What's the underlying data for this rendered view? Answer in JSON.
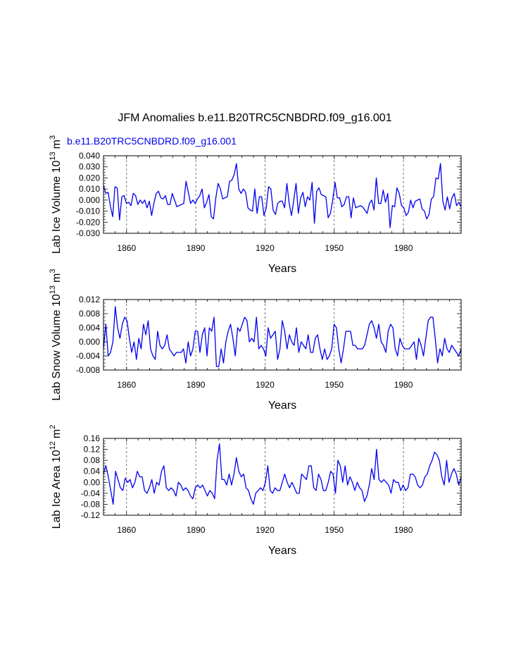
{
  "page": {
    "title": "JFM Anomalies b.e11.B20TRC5CNBDRD.f09_g16.001",
    "legend_label": "b.e11.B20TRC5CNBDRD.f09_g16.001",
    "legend_color": "#0000ee",
    "line_color": "#0000ee"
  },
  "chart_data": [
    {
      "type": "line",
      "ylabel": "Lab Ice Volume 10",
      "ylabel_exp": "13",
      "ylabel_unit": "m",
      "ylabel_unit_exp": "3",
      "xlabel": "Years",
      "xlim": [
        1850,
        2005
      ],
      "ylim": [
        -0.03,
        0.04
      ],
      "xticks": [
        1860,
        1890,
        1920,
        1950,
        1980
      ],
      "xtick_labels": [
        "1860",
        "1890",
        "1920",
        "1950",
        "1980"
      ],
      "yticks": [
        -0.03,
        -0.02,
        -0.01,
        0.0,
        0.01,
        0.02,
        0.03,
        0.04
      ],
      "ytick_labels": [
        "-0.030",
        "-0.020",
        "-0.010",
        "0.000",
        "0.010",
        "0.020",
        "0.030",
        "0.040"
      ],
      "x_start": 1850,
      "values": [
        0.013,
        0.006,
        0.007,
        -0.005,
        -0.015,
        0.012,
        0.011,
        -0.018,
        0.003,
        0.004,
        -0.003,
        -0.002,
        -0.005,
        0.006,
        0.004,
        -0.004,
        0.0,
        -0.003,
        0.0,
        -0.007,
        -0.001,
        -0.014,
        -0.003,
        0.006,
        0.008,
        0.002,
        0.001,
        0.004,
        -0.004,
        -0.004,
        0.006,
        0.0,
        -0.006,
        -0.005,
        -0.004,
        -0.003,
        0.017,
        0.007,
        -0.003,
        0.0,
        -0.003,
        0.001,
        0.004,
        0.01,
        -0.007,
        -0.002,
        0.005,
        -0.015,
        -0.017,
        0.002,
        0.015,
        0.01,
        0.001,
        0.002,
        0.003,
        0.017,
        0.018,
        0.023,
        0.033,
        0.01,
        0.006,
        0.01,
        0.007,
        -0.007,
        -0.009,
        -0.01,
        0.01,
        -0.012,
        0.003,
        0.003,
        -0.014,
        -0.007,
        0.012,
        0.01,
        -0.009,
        -0.013,
        -0.003,
        -0.001,
        -0.001,
        -0.007,
        0.015,
        -0.003,
        -0.014,
        0.0,
        0.015,
        -0.012,
        0.002,
        0.007,
        -0.006,
        0.003,
        0.0,
        0.016,
        -0.021,
        0.008,
        0.011,
        0.005,
        0.004,
        0.003,
        -0.016,
        -0.012,
        0.0,
        0.016,
        0.002,
        0.002,
        -0.006,
        -0.004,
        0.003,
        0.003,
        -0.016,
        0.002,
        -0.007,
        -0.006,
        -0.005,
        -0.006,
        -0.009,
        -0.012,
        -0.003,
        0.0,
        -0.009,
        0.02,
        -0.003,
        -0.003,
        0.009,
        -0.002,
        0.006,
        -0.025,
        -0.005,
        -0.006,
        0.011,
        0.006,
        -0.005,
        -0.007,
        -0.014,
        -0.011,
        0.0,
        -0.007,
        -0.001,
        0.0,
        0.001,
        -0.008,
        -0.01,
        -0.017,
        -0.013,
        0.001,
        0.003,
        0.02,
        0.019,
        0.033,
        -0.001,
        -0.009,
        0.003,
        -0.008,
        0.002,
        0.006,
        -0.005,
        -0.002,
        -0.006
      ]
    },
    {
      "type": "line",
      "ylabel": "Lab Snow Volume 10",
      "ylabel_exp": "13",
      "ylabel_unit": "m",
      "ylabel_unit_exp": "3",
      "xlabel": "Years",
      "xlim": [
        1850,
        2005
      ],
      "ylim": [
        -0.008,
        0.012
      ],
      "xticks": [
        1860,
        1890,
        1920,
        1950,
        1980
      ],
      "xtick_labels": [
        "1860",
        "1890",
        "1920",
        "1950",
        "1980"
      ],
      "yticks": [
        -0.008,
        -0.004,
        0.0,
        0.004,
        0.008,
        0.012
      ],
      "ytick_labels": [
        "-0.008",
        "-0.004",
        "0.000",
        "0.004",
        "0.008",
        "0.012"
      ],
      "x_start": 1850,
      "values": [
        -0.002,
        0.005,
        -0.004,
        -0.003,
        0.0,
        0.01,
        0.004,
        0.001,
        0.005,
        0.007,
        0.006,
        0.001,
        -0.003,
        0.0,
        -0.005,
        0.001,
        -0.002,
        0.005,
        0.002,
        0.006,
        -0.002,
        -0.004,
        -0.005,
        0.003,
        -0.001,
        -0.002,
        -0.001,
        0.002,
        -0.002,
        -0.003,
        -0.004,
        -0.003,
        -0.003,
        -0.003,
        -0.002,
        -0.006,
        0.0,
        -0.004,
        -0.002,
        0.003,
        0.003,
        -0.003,
        0.002,
        0.004,
        -0.004,
        0.004,
        0.003,
        0.007,
        -0.007,
        -0.007,
        -0.002,
        -0.006,
        0.0,
        0.003,
        0.005,
        0.001,
        -0.004,
        0.004,
        0.003,
        0.005,
        0.007,
        0.006,
        0.0,
        0.001,
        0.0,
        0.007,
        -0.002,
        -0.001,
        -0.002,
        -0.004,
        0.004,
        0.001,
        0.002,
        0.003,
        -0.005,
        -0.002,
        0.006,
        0.003,
        -0.002,
        0.002,
        0.0,
        -0.001,
        0.004,
        -0.003,
        0.0,
        -0.001,
        -0.002,
        0.002,
        -0.003,
        -0.003,
        0.001,
        0.002,
        -0.002,
        -0.005,
        -0.002,
        -0.005,
        -0.004,
        -0.002,
        0.005,
        0.004,
        -0.002,
        -0.006,
        -0.002,
        0.003,
        0.003,
        0.003,
        -0.001,
        -0.001,
        -0.002,
        -0.002,
        -0.002,
        -0.001,
        0.002,
        0.005,
        0.006,
        0.004,
        0.001,
        0.005,
        0.0,
        -0.001,
        -0.003,
        0.003,
        0.005,
        0.004,
        -0.002,
        -0.004,
        0.001,
        -0.001,
        -0.002,
        -0.002,
        -0.002,
        -0.001,
        0.0,
        -0.005,
        0.001,
        -0.001,
        -0.004,
        0.001,
        0.006,
        0.007,
        0.007,
        0.001,
        -0.006,
        -0.002,
        -0.004,
        0.001,
        -0.002,
        -0.003,
        -0.001,
        -0.002,
        -0.003,
        -0.004,
        -0.002
      ]
    },
    {
      "type": "line",
      "ylabel": "Lab Ice Area 10",
      "ylabel_exp": "12",
      "ylabel_unit": "m",
      "ylabel_unit_exp": "2",
      "xlabel": "Years",
      "xlim": [
        1850,
        2005
      ],
      "ylim": [
        -0.12,
        0.16
      ],
      "xticks": [
        1860,
        1890,
        1920,
        1950,
        1980
      ],
      "xtick_labels": [
        "1860",
        "1890",
        "1920",
        "1950",
        "1980"
      ],
      "yticks": [
        -0.12,
        -0.08,
        -0.04,
        0.0,
        0.04,
        0.08,
        0.12,
        0.16
      ],
      "ytick_labels": [
        "-0.12",
        "-0.08",
        "-0.04",
        "0.00",
        "0.04",
        "0.08",
        "0.12",
        "0.16"
      ],
      "x_start": 1850,
      "values": [
        0.03,
        0.06,
        0.02,
        -0.03,
        -0.08,
        0.04,
        0.01,
        -0.02,
        -0.03,
        0.015,
        0.0,
        0.01,
        -0.02,
        0.0,
        0.04,
        0.02,
        0.02,
        -0.03,
        -0.04,
        -0.02,
        0.01,
        -0.04,
        0.0,
        -0.01,
        0.04,
        0.06,
        -0.02,
        -0.03,
        -0.02,
        -0.03,
        -0.05,
        0.0,
        -0.01,
        -0.03,
        -0.02,
        -0.03,
        -0.05,
        -0.06,
        -0.02,
        -0.01,
        -0.02,
        -0.01,
        -0.03,
        -0.05,
        -0.03,
        -0.04,
        -0.06,
        0.08,
        0.14,
        0.01,
        0.01,
        -0.01,
        0.03,
        -0.01,
        0.03,
        0.09,
        0.04,
        0.02,
        0.03,
        -0.02,
        -0.03,
        -0.06,
        -0.08,
        -0.04,
        -0.03,
        -0.02,
        -0.03,
        0.0,
        0.06,
        -0.03,
        -0.04,
        -0.02,
        -0.03,
        -0.03,
        0.0,
        0.03,
        0.0,
        -0.02,
        0.0,
        -0.02,
        -0.04,
        -0.04,
        0.03,
        0.02,
        0.01,
        0.06,
        0.06,
        -0.02,
        -0.03,
        0.03,
        0.01,
        -0.03,
        -0.03,
        0.0,
        0.04,
        0.03,
        -0.04,
        0.08,
        0.06,
        0.0,
        0.06,
        -0.01,
        0.02,
        0.0,
        -0.03,
        0.0,
        -0.02,
        -0.03,
        -0.07,
        -0.05,
        -0.01,
        0.05,
        0.01,
        0.12,
        0.01,
        0.0,
        0.01,
        0.0,
        -0.01,
        -0.04,
        0.01,
        0.0,
        0.0,
        -0.03,
        -0.01,
        -0.03,
        -0.02,
        0.03,
        0.03,
        0.02,
        -0.01,
        -0.02,
        -0.01,
        0.02,
        0.03,
        0.06,
        0.08,
        0.11,
        0.1,
        0.08,
        0.02,
        -0.01,
        0.08,
        0.0,
        0.03,
        0.05,
        0.03,
        -0.01,
        0.02
      ]
    }
  ]
}
